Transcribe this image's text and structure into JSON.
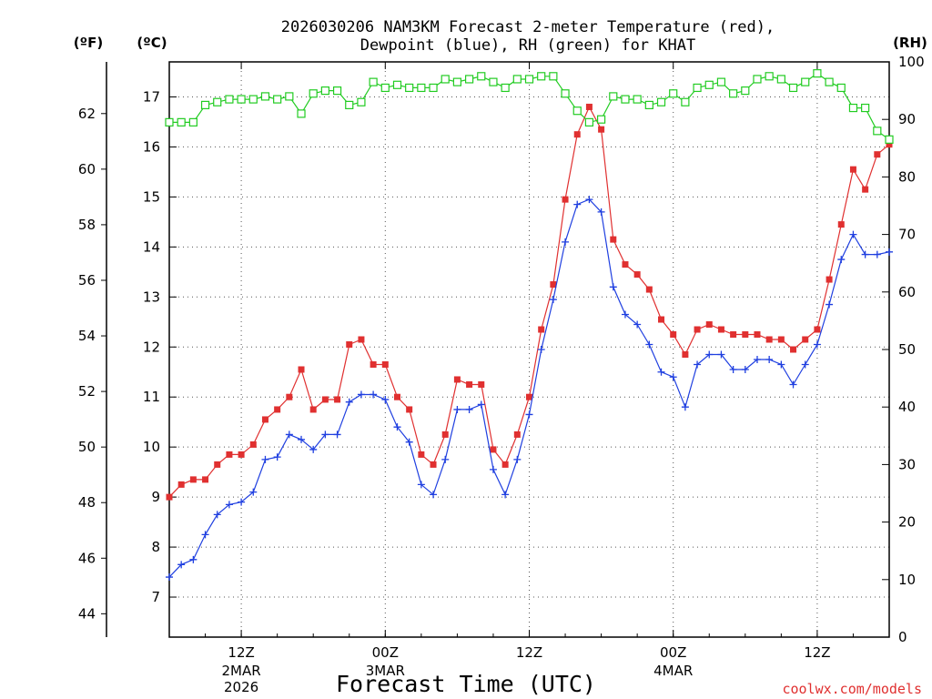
{
  "chart_data": {
    "type": "line",
    "title_lines": [
      "2026030206 NAM3KM Forecast 2-meter Temperature (red),",
      "Dewpoint (blue), RH (green) for KHAT"
    ],
    "xlabel": "Forecast Time (UTC)",
    "credit": "coolwx.com/models",
    "unit_labels": {
      "fahrenheit": "(ºF)",
      "celsius": "(ºC)",
      "rh": "(RH)"
    },
    "x_start_hour": 6,
    "x_end_hour": 66,
    "x_ticks": [
      {
        "hour": 12,
        "label": "12Z",
        "sub1": "2MAR",
        "sub2": "2026"
      },
      {
        "hour": 24,
        "label": "00Z",
        "sub1": "3MAR",
        "sub2": ""
      },
      {
        "hour": 36,
        "label": "12Z",
        "sub1": "",
        "sub2": ""
      },
      {
        "hour": 48,
        "label": "00Z",
        "sub1": "4MAR",
        "sub2": ""
      },
      {
        "hour": 60,
        "label": "12Z",
        "sub1": "",
        "sub2": ""
      }
    ],
    "celsius_axis": {
      "ylim": [
        6.2,
        17.7
      ],
      "ticks": [
        7,
        8,
        9,
        10,
        11,
        12,
        13,
        14,
        15,
        16,
        17
      ]
    },
    "fahrenheit_axis": {
      "ticks": [
        44,
        46,
        48,
        50,
        52,
        54,
        56,
        58,
        60,
        62
      ]
    },
    "rh_axis": {
      "ylim": [
        0,
        100
      ],
      "ticks": [
        0,
        10,
        20,
        30,
        40,
        50,
        60,
        70,
        80,
        90,
        100
      ]
    },
    "series": [
      {
        "name": "Temperature",
        "color": "#e03030",
        "marker": "square-filled",
        "units": "celsius",
        "values": [
          9.0,
          9.25,
          9.35,
          9.35,
          9.65,
          9.85,
          9.85,
          10.05,
          10.55,
          10.75,
          11.0,
          11.55,
          10.75,
          10.95,
          10.95,
          12.05,
          12.15,
          11.65,
          11.65,
          11.0,
          10.75,
          9.85,
          9.65,
          10.25,
          11.35,
          11.25,
          11.25,
          9.95,
          9.65,
          10.25,
          11.0,
          12.35,
          13.25,
          14.95,
          16.25,
          16.8,
          16.35,
          14.15,
          13.65,
          13.45,
          13.15,
          12.55,
          12.25,
          11.85,
          12.35,
          12.45,
          12.35,
          12.25,
          12.25,
          12.25,
          12.15,
          12.15,
          11.95,
          12.15,
          12.35,
          13.35,
          14.45,
          15.55,
          15.15,
          15.85,
          16.05
        ]
      },
      {
        "name": "Dewpoint",
        "color": "#1f3fe0",
        "marker": "plus",
        "units": "celsius",
        "values": [
          7.4,
          7.65,
          7.75,
          8.25,
          8.65,
          8.85,
          8.9,
          9.1,
          9.75,
          9.8,
          10.25,
          10.15,
          9.95,
          10.25,
          10.25,
          10.9,
          11.05,
          11.05,
          10.95,
          10.4,
          10.1,
          9.25,
          9.05,
          9.75,
          10.75,
          10.75,
          10.85,
          9.55,
          9.05,
          9.75,
          10.65,
          11.95,
          12.95,
          14.1,
          14.85,
          14.95,
          14.7,
          13.2,
          12.65,
          12.45,
          12.05,
          11.5,
          11.4,
          10.8,
          11.65,
          11.85,
          11.85,
          11.55,
          11.55,
          11.75,
          11.75,
          11.65,
          11.25,
          11.65,
          12.05,
          12.85,
          13.75,
          14.25,
          13.85,
          13.85,
          13.9
        ]
      },
      {
        "name": "RH",
        "color": "#22cc22",
        "marker": "square-open",
        "units": "rh",
        "values": [
          89.5,
          89.5,
          89.5,
          92.5,
          93.0,
          93.5,
          93.5,
          93.5,
          94.0,
          93.5,
          94.0,
          91.0,
          94.5,
          95.0,
          95.0,
          92.5,
          93.0,
          96.5,
          95.5,
          96.0,
          95.5,
          95.5,
          95.5,
          97.0,
          96.5,
          97.0,
          97.5,
          96.5,
          95.5,
          97.0,
          97.0,
          97.5,
          97.5,
          94.5,
          91.5,
          89.5,
          90.0,
          94.0,
          93.5,
          93.5,
          92.5,
          93.0,
          94.5,
          93.0,
          95.5,
          96.0,
          96.5,
          94.5,
          95.0,
          97.0,
          97.5,
          97.0,
          95.5,
          96.5,
          98.0,
          96.5,
          95.5,
          92.0,
          92.0,
          88.0,
          86.5
        ]
      }
    ]
  }
}
